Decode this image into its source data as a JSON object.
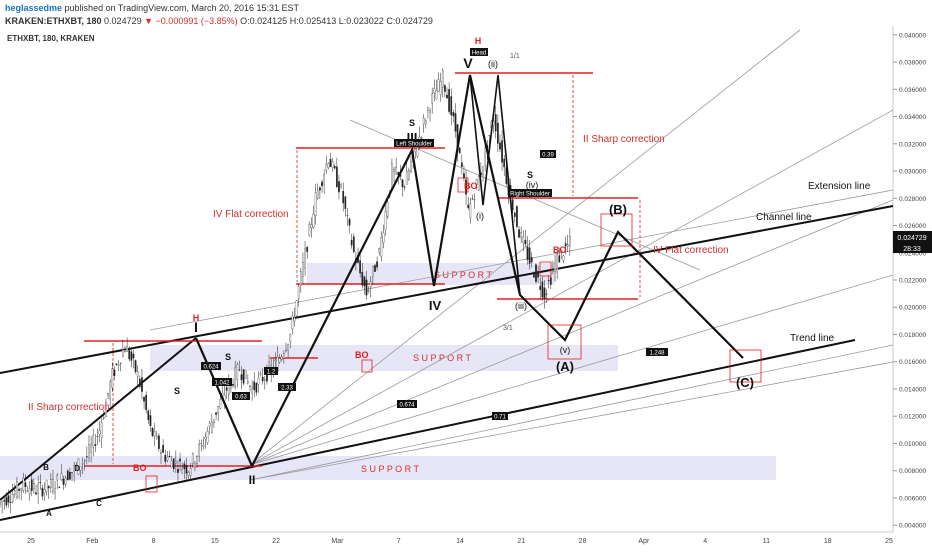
{
  "header": {
    "author": "heglassedme",
    "published": "published on TradingView.com, March 20, 2016 15:31 EST",
    "symbol_line": "KRAKEN:ETHXBT, 180",
    "last": "0.024729",
    "change": "−0.000991 (−3.85%)",
    "open": "O:0.024125",
    "high": "H:0.025413",
    "low": "L:0.023022",
    "close": "C:0.024729"
  },
  "chart_data": {
    "type": "line",
    "title": "ETHXBT, 180, KRAKEN",
    "y_ticks": [
      "0.040000",
      "0.038000",
      "0.036000",
      "0.034000",
      "0.032000",
      "0.030000",
      "0.028000",
      "0.026000",
      "0.024000",
      "0.022000",
      "0.020000",
      "0.018000",
      "0.016000",
      "0.014000",
      "0.012000",
      "0.010000",
      "0.008000",
      "0.006000",
      "0.004000"
    ],
    "x_ticks": [
      "25",
      "Feb",
      "8",
      "15",
      "22",
      "Mar",
      "7",
      "14",
      "21",
      "28",
      "Apr",
      "4",
      "11",
      "18",
      "25"
    ],
    "ylim": [
      0.0035,
      0.0405
    ],
    "price_tag": "0.024729",
    "time_tag": "28:33",
    "series": [
      {
        "values": [
          0.0055,
          0.0062,
          0.007,
          0.0066,
          0.0068,
          0.0074,
          0.0081,
          0.009,
          0.011,
          0.015,
          0.0172,
          0.015,
          0.011,
          0.0092,
          0.0085,
          0.0082,
          0.0098,
          0.012,
          0.014,
          0.0155,
          0.014,
          0.015,
          0.016,
          0.018,
          0.023,
          0.028,
          0.031,
          0.0285,
          0.024,
          0.021,
          0.024,
          0.03,
          0.029,
          0.032,
          0.035,
          0.0368,
          0.033,
          0.027,
          0.03,
          0.034,
          0.0295,
          0.0255,
          0.023,
          0.021,
          0.0235,
          0.0247
        ]
      }
    ],
    "wave_labels": [
      "I",
      "II",
      "III",
      "IV",
      "V",
      "(i)",
      "(ii)",
      "(iii)",
      "(iv)",
      "(v)",
      "(A)",
      "(B)",
      "(C)",
      "A",
      "B",
      "C",
      "D",
      "S",
      "H",
      "Head",
      "Left Shoulder",
      "Right Shoulder",
      "BO"
    ],
    "annotations": {
      "support": "S U P P O R T",
      "extension_line": "Extension line",
      "channel_line": "Channel line",
      "trend_line": "Trend line",
      "sharp_correction": "II Sharp correction",
      "flat_correction": "IV Flat correction",
      "fib_labels": [
        "0.624",
        "1.042",
        "0.63",
        "1.2",
        "2.33",
        "0.39",
        "1.248",
        "0.674",
        "0.71",
        "1/1",
        "3/1"
      ]
    }
  }
}
